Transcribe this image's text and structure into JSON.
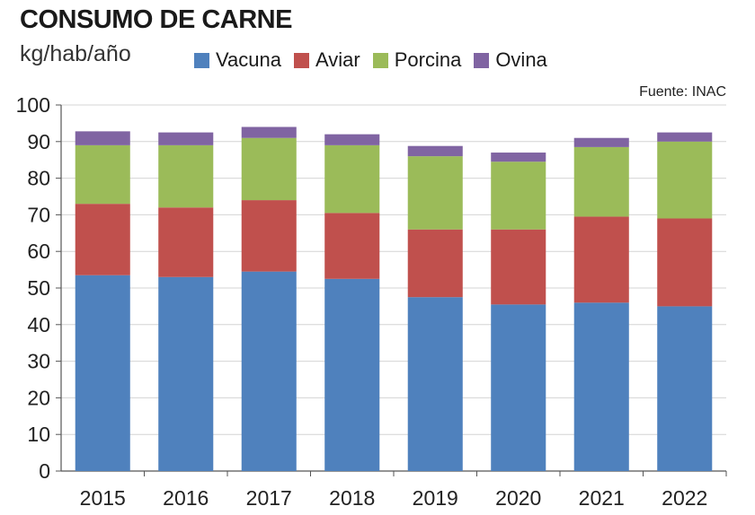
{
  "chart_data": {
    "type": "bar",
    "stacked": true,
    "title": "CONSUMO DE CARNE",
    "ylabel": "kg/hab/año",
    "source": "Fuente: INAC",
    "ylim": [
      0,
      100
    ],
    "yticks": [
      "0",
      "10",
      "20",
      "30",
      "40",
      "50",
      "60",
      "70",
      "80",
      "90",
      "100"
    ],
    "categories": [
      "2015",
      "2016",
      "2017",
      "2018",
      "2019",
      "2020",
      "2021",
      "2022"
    ],
    "series": [
      {
        "name": "Vacuna",
        "color": "#4f81bd",
        "values": [
          53.5,
          53.0,
          54.5,
          52.5,
          47.5,
          45.5,
          46.0,
          45.0
        ]
      },
      {
        "name": "Aviar",
        "color": "#c0504d",
        "values": [
          19.5,
          19.0,
          19.5,
          18.0,
          18.5,
          20.5,
          23.5,
          24.0
        ]
      },
      {
        "name": "Porcina",
        "color": "#9bbb59",
        "values": [
          16.0,
          17.0,
          17.0,
          18.5,
          20.0,
          18.5,
          19.0,
          21.0
        ]
      },
      {
        "name": "Ovina",
        "color": "#8064a2",
        "values": [
          3.8,
          3.5,
          3.0,
          3.0,
          2.8,
          2.5,
          2.5,
          2.5
        ]
      }
    ]
  }
}
